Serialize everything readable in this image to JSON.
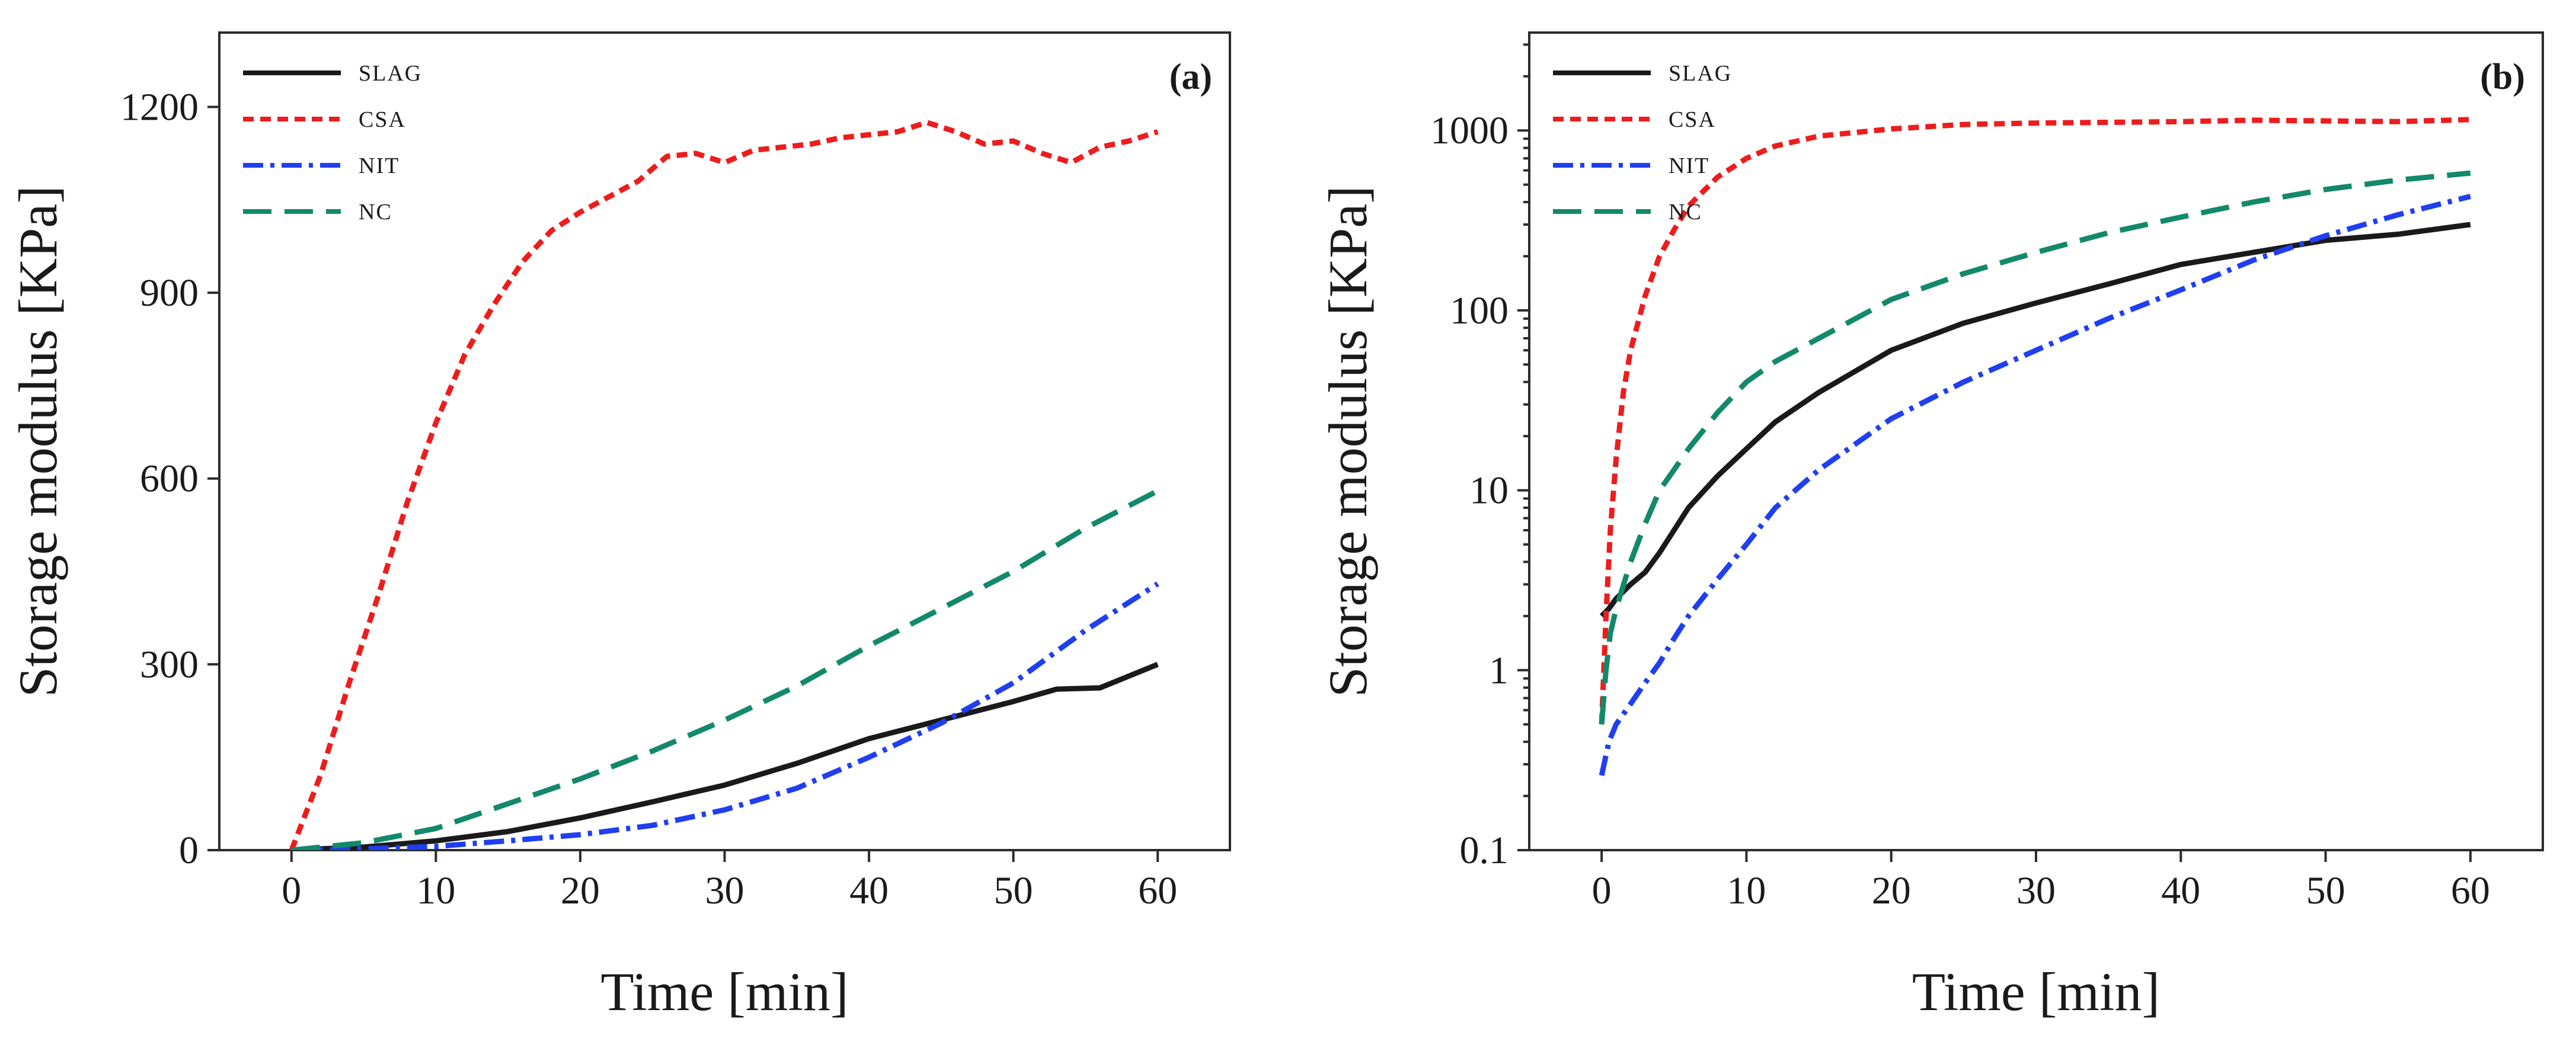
{
  "chart_data": [
    {
      "type": "line",
      "panel_label": "(a)",
      "xlabel": "Time [min]",
      "ylabel": "Storage modulus [KPa]",
      "xlim": [
        -5,
        65
      ],
      "ylim": [
        0,
        1320
      ],
      "yscale": "linear",
      "xticks": [
        0,
        10,
        20,
        30,
        40,
        50,
        60
      ],
      "yticks": [
        0,
        300,
        600,
        900,
        1200
      ],
      "ytick_labels": [
        "0",
        "300",
        "600",
        "900",
        "1200"
      ],
      "grid": false,
      "legend_position": "top-left",
      "series": [
        {
          "name": "SLAG",
          "color": "#1a1a1a",
          "dash": "solid",
          "x": [
            0,
            5,
            10,
            15,
            20,
            25,
            30,
            35,
            40,
            45,
            50,
            53,
            56,
            60
          ],
          "y": [
            0,
            5,
            15,
            30,
            52,
            78,
            105,
            140,
            180,
            210,
            240,
            260,
            262,
            300
          ]
        },
        {
          "name": "CSA",
          "color": "#ee1c1c",
          "dash": "short",
          "x": [
            0,
            2,
            4,
            6,
            8,
            10,
            12,
            14,
            16,
            18,
            20,
            22,
            24,
            26,
            28,
            30,
            32,
            34,
            36,
            38,
            40,
            42,
            44,
            46,
            48,
            50,
            52,
            54,
            56,
            58,
            60
          ],
          "y": [
            0,
            120,
            270,
            410,
            560,
            690,
            800,
            880,
            950,
            1000,
            1030,
            1055,
            1080,
            1120,
            1125,
            1110,
            1130,
            1135,
            1140,
            1150,
            1155,
            1160,
            1175,
            1160,
            1140,
            1145,
            1125,
            1110,
            1135,
            1145,
            1160
          ]
        },
        {
          "name": "NIT",
          "color": "#1f3ff0",
          "dash": "dashdot",
          "x": [
            0,
            5,
            10,
            15,
            20,
            25,
            30,
            35,
            40,
            45,
            50,
            55,
            60
          ],
          "y": [
            0,
            2,
            6,
            15,
            25,
            40,
            65,
            100,
            150,
            205,
            270,
            355,
            430
          ]
        },
        {
          "name": "NC",
          "color": "#12896a",
          "dash": "long",
          "x": [
            0,
            5,
            10,
            15,
            20,
            25,
            30,
            35,
            40,
            45,
            50,
            55,
            60
          ],
          "y": [
            0,
            12,
            35,
            75,
            115,
            160,
            210,
            265,
            330,
            390,
            450,
            520,
            580
          ]
        }
      ]
    },
    {
      "type": "line",
      "panel_label": "(b)",
      "xlabel": "Time [min]",
      "ylabel": "Storage modulus [KPa]",
      "xlim": [
        -5,
        65
      ],
      "ylim": [
        0.1,
        3500
      ],
      "yscale": "log",
      "xticks": [
        0,
        10,
        20,
        30,
        40,
        50,
        60
      ],
      "yticks": [
        0.1,
        1,
        10,
        100,
        1000
      ],
      "ytick_labels": [
        "0.1",
        "1",
        "10",
        "100",
        "1000"
      ],
      "grid": false,
      "legend_position": "top-left",
      "series": [
        {
          "name": "SLAG",
          "color": "#1a1a1a",
          "dash": "solid",
          "x": [
            0,
            0.5,
            1,
            2,
            3,
            4,
            5,
            6,
            8,
            10,
            12,
            15,
            20,
            25,
            30,
            35,
            40,
            45,
            50,
            55,
            60
          ],
          "y": [
            2,
            2.2,
            2.5,
            3,
            3.5,
            4.5,
            6,
            8,
            12,
            17,
            24,
            35,
            60,
            85,
            110,
            140,
            180,
            210,
            245,
            265,
            300
          ]
        },
        {
          "name": "CSA",
          "color": "#ee1c1c",
          "dash": "short",
          "x": [
            0,
            0.3,
            0.6,
            1,
            1.5,
            2,
            3,
            4,
            5,
            6,
            8,
            10,
            12,
            15,
            20,
            25,
            30,
            35,
            40,
            45,
            50,
            55,
            60
          ],
          "y": [
            0.5,
            2,
            6,
            15,
            35,
            60,
            120,
            200,
            280,
            380,
            550,
            700,
            820,
            930,
            1020,
            1080,
            1100,
            1110,
            1120,
            1140,
            1130,
            1120,
            1150
          ]
        },
        {
          "name": "NIT",
          "color": "#1f3ff0",
          "dash": "dashdot",
          "x": [
            0,
            0.5,
            1,
            2,
            3,
            4,
            5,
            6,
            8,
            10,
            12,
            15,
            20,
            25,
            30,
            35,
            40,
            45,
            50,
            55,
            60
          ],
          "y": [
            0.26,
            0.4,
            0.5,
            0.65,
            0.85,
            1.1,
            1.5,
            2,
            3.2,
            5,
            8,
            13,
            25,
            40,
            60,
            90,
            130,
            190,
            260,
            340,
            430
          ]
        },
        {
          "name": "NC",
          "color": "#12896a",
          "dash": "long",
          "x": [
            0,
            0.3,
            0.6,
            1,
            2,
            3,
            4,
            5,
            6,
            8,
            10,
            12,
            15,
            20,
            25,
            30,
            35,
            40,
            45,
            50,
            55,
            60
          ],
          "y": [
            0.5,
            1,
            1.6,
            2.2,
            4,
            6.5,
            10,
            13,
            17,
            27,
            40,
            52,
            70,
            115,
            160,
            210,
            270,
            330,
            400,
            470,
            530,
            580
          ]
        }
      ]
    }
  ]
}
